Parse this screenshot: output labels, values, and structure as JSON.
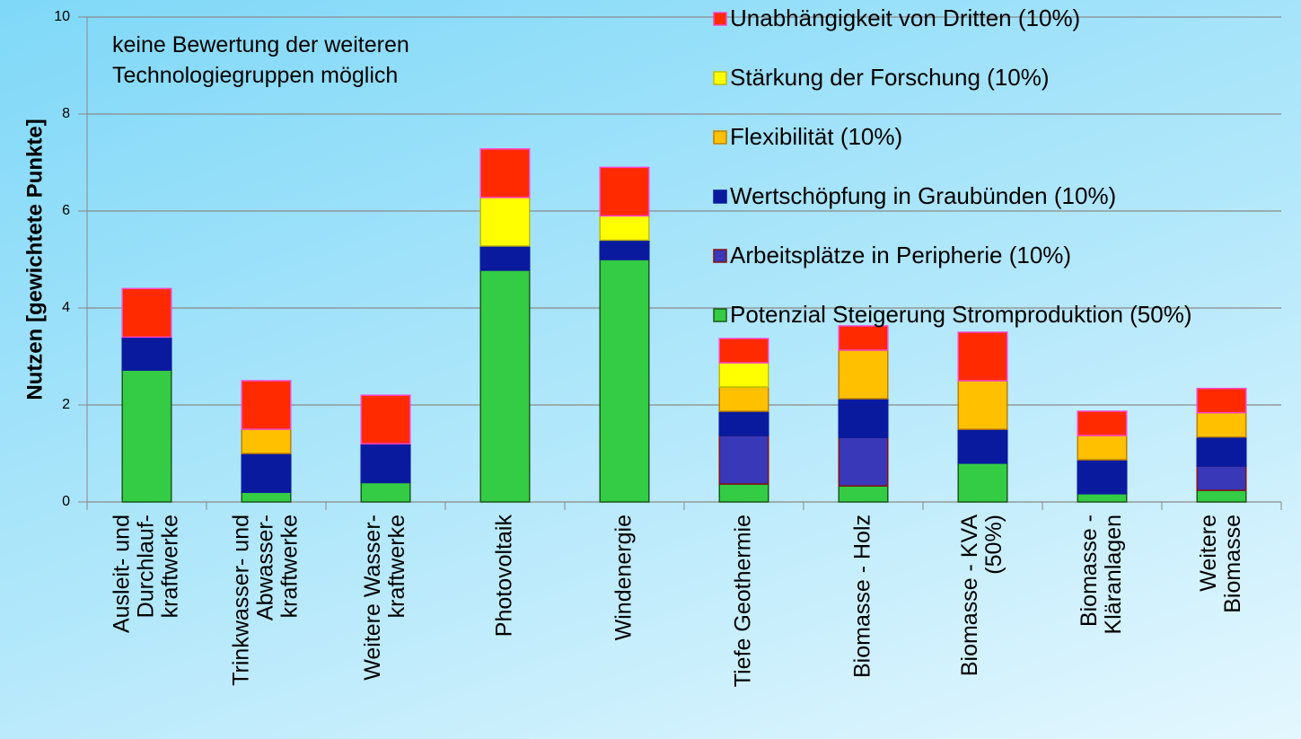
{
  "chart_data": {
    "type": "stacked_bar",
    "ylabel": "Nutzen [gewichtete Punkte]",
    "annotation": "keine Bewertung  der weiteren\nTechnologiegruppen möglich",
    "categories": [
      "Ausleit- und\nDurchlauf-\nkraftwerke",
      "Trinkwasser- und\nAbwasser-\nkraftwerke",
      "Weitere Wasser-\nkraftwerke",
      "Photovoltaik",
      "Windenergie",
      "Tiefe Geothermie",
      "Biomasse - Holz",
      "Biomasse - KVA\n(50%)",
      "Biomasse -\nKläranlagen",
      "Weitere\nBiomasse"
    ],
    "series": [
      {
        "name": "Potenzial Steigerung Stromproduktion (50%)",
        "color": "#33cc44",
        "edgecolor": "#1a5a1a",
        "values": [
          2.72,
          0.2,
          0.4,
          4.78,
          5.0,
          0.37,
          0.33,
          0.8,
          0.17,
          0.24
        ]
      },
      {
        "name": "Arbeitsplätze in Peripherie (10%)",
        "color": "#3838b8",
        "edgecolor": "#8a1010",
        "values": [
          0,
          0,
          0,
          0,
          0,
          1.0,
          1.0,
          0,
          0,
          0.5
        ]
      },
      {
        "name": "Wertschöpfung in Graubünden (10%)",
        "color": "#0a1a9e",
        "edgecolor": "#0a1a9e",
        "values": [
          0.68,
          0.8,
          0.8,
          0.5,
          0.4,
          0.5,
          0.8,
          0.7,
          0.7,
          0.6
        ]
      },
      {
        "name": "Flexibilität (10%)",
        "color": "#ffc000",
        "edgecolor": "#c08000",
        "values": [
          0,
          0.5,
          0,
          0,
          0,
          0.5,
          1.0,
          1.0,
          0.5,
          0.5
        ]
      },
      {
        "name": "Stärkung der Forschung (10%)",
        "color": "#ffff00",
        "edgecolor": "#c0c000",
        "values": [
          0,
          0,
          0,
          1.0,
          0.5,
          0.5,
          0,
          0,
          0,
          0
        ]
      },
      {
        "name": "Unabhängigkeit von Dritten (10%)",
        "color": "#ff2a00",
        "edgecolor": "#ff44cc",
        "values": [
          1.0,
          1.0,
          1.0,
          1.0,
          1.0,
          0.5,
          0.5,
          1.0,
          0.5,
          0.5
        ]
      }
    ],
    "ylim": [
      0,
      10
    ],
    "yticks": [
      0,
      2,
      4,
      6,
      8,
      10
    ],
    "grid": true,
    "legend": "upper right"
  }
}
